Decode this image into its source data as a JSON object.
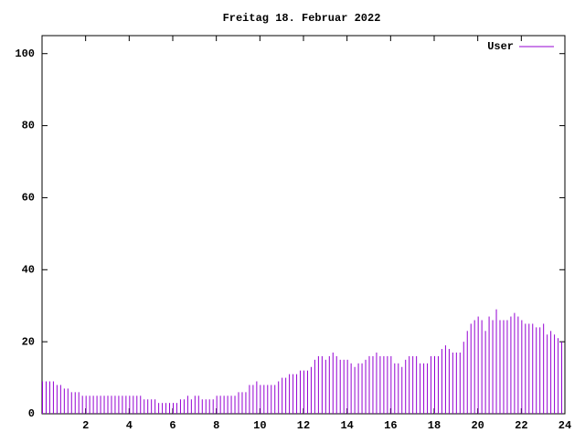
{
  "chart_data": {
    "type": "impulse",
    "title": "Freitag 18. Februar 2022",
    "x": [
      0,
      10,
      20,
      30,
      40,
      50,
      60,
      70,
      80,
      90,
      100,
      110,
      120,
      130,
      140,
      150,
      160,
      170,
      180,
      190,
      200,
      210,
      220,
      230,
      240,
      250,
      260,
      270,
      280,
      290,
      300,
      310,
      320,
      330,
      340,
      350,
      360,
      370,
      380,
      390,
      400,
      410,
      420,
      430,
      440,
      450,
      460,
      470,
      480,
      490,
      500,
      510,
      520,
      530,
      540,
      550,
      560,
      570,
      580,
      590,
      600,
      610,
      620,
      630,
      640,
      650,
      660,
      670,
      680,
      690,
      700,
      710,
      720,
      730,
      740,
      750,
      760,
      770,
      780,
      790,
      800,
      810,
      820,
      830,
      840,
      850,
      860,
      870,
      880,
      890,
      900,
      910,
      920,
      930,
      940,
      950,
      960,
      970,
      980,
      990,
      1000,
      1010,
      1020,
      1030,
      1040,
      1050,
      1060,
      1070,
      1080,
      1090,
      1100,
      1110,
      1120,
      1130,
      1140,
      1150,
      1160,
      1170,
      1180,
      1190,
      1200,
      1210,
      1220,
      1230,
      1240,
      1250,
      1260,
      1270,
      1280,
      1290,
      1300,
      1310,
      1320,
      1330,
      1340,
      1350,
      1360,
      1370,
      1380,
      1390,
      1400,
      1410,
      1420,
      1430
    ],
    "series": [
      {
        "name": "User",
        "color": "#9400d3",
        "values": [
          9,
          9,
          9,
          9,
          8,
          8,
          7,
          7,
          6,
          6,
          6,
          5,
          5,
          5,
          5,
          5,
          5,
          5,
          5,
          5,
          5,
          5,
          5,
          5,
          5,
          5,
          5,
          5,
          4,
          4,
          4,
          4,
          3,
          3,
          3,
          3,
          3,
          3,
          4,
          4,
          5,
          4,
          5,
          5,
          4,
          4,
          4,
          4,
          5,
          5,
          5,
          5,
          5,
          5,
          6,
          6,
          6,
          8,
          8,
          9,
          8,
          8,
          8,
          8,
          8,
          9,
          10,
          10,
          11,
          11,
          11,
          12,
          12,
          12,
          13,
          15,
          16,
          16,
          15,
          16,
          17,
          16,
          15,
          15,
          15,
          14,
          13,
          14,
          14,
          15,
          16,
          16,
          17,
          16,
          16,
          16,
          16,
          14,
          14,
          13,
          15,
          16,
          16,
          16,
          14,
          14,
          14,
          16,
          16,
          16,
          18,
          19,
          18,
          17,
          17,
          17,
          20,
          23,
          25,
          26,
          27,
          26,
          23,
          27,
          26,
          29,
          26,
          26,
          26,
          27,
          28,
          27,
          26,
          25,
          25,
          25,
          24,
          24,
          25,
          22,
          23,
          22,
          21,
          20
        ]
      }
    ],
    "xlim": [
      0,
      1440
    ],
    "xticks": [
      {
        "value": 120,
        "label": "2"
      },
      {
        "value": 240,
        "label": "4"
      },
      {
        "value": 360,
        "label": "6"
      },
      {
        "value": 480,
        "label": "8"
      },
      {
        "value": 600,
        "label": "10"
      },
      {
        "value": 720,
        "label": "12"
      },
      {
        "value": 840,
        "label": "14"
      },
      {
        "value": 960,
        "label": "16"
      },
      {
        "value": 1080,
        "label": "18"
      },
      {
        "value": 1200,
        "label": "20"
      },
      {
        "value": 1320,
        "label": "22"
      },
      {
        "value": 1440,
        "label": "24"
      }
    ],
    "ylim": [
      0,
      105
    ],
    "yticks": [
      0,
      20,
      40,
      60,
      80,
      100
    ],
    "legend": "top-right"
  }
}
